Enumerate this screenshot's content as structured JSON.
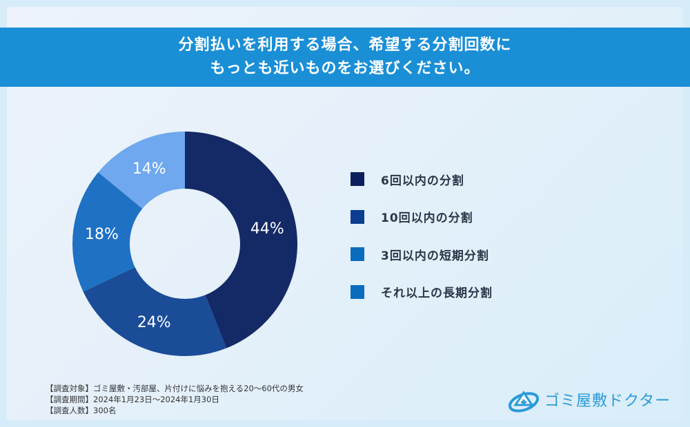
{
  "title_lines": [
    "分割払いを利用する場合、希望する分割回数に",
    "もっとも近いものをお選びください。"
  ],
  "chart_data": {
    "type": "pie",
    "donut": true,
    "title": "分割払いを利用する場合、希望する分割回数にもっとも近いものをお選びください。",
    "categories": [
      "6回以内の分割",
      "10回以内の分割",
      "3回以内の短期分割",
      "それ以上の長期分割"
    ],
    "values": [
      44,
      24,
      18,
      14
    ],
    "labels": [
      "44%",
      "24%",
      "18%",
      "14%"
    ],
    "unit": "%",
    "slice_colors": [
      "#142a66",
      "#1b4c98",
      "#1f71c4",
      "#6fa8ee"
    ],
    "legend_colors": [
      "#0d1f5c",
      "#0b3d91",
      "#0a6cbf",
      "#0a6cbf"
    ],
    "legend_position": "right"
  },
  "notes": [
    "【調査対象】ゴミ屋敷・汚部屋、片付けに悩みを抱える20〜60代の男女",
    "【調査期間】2024年1月23日〜2024年1月30日",
    "【調査人数】300名"
  ],
  "logo": {
    "text": "ゴミ屋敷ドクター"
  }
}
